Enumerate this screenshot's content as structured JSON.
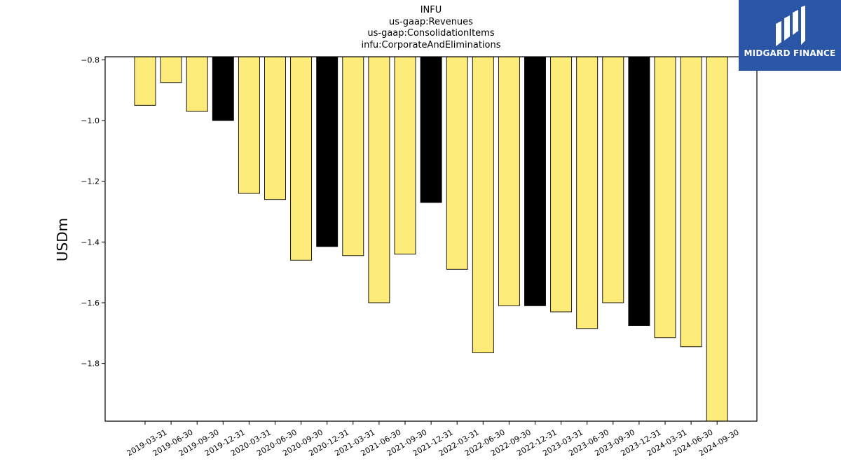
{
  "chart_data": {
    "type": "bar",
    "title_lines": [
      "INFU",
      "us-gaap:Revenues",
      "us-gaap:ConsolidationItems",
      "infu:CorporateAndEliminations"
    ],
    "ylabel": "USDm",
    "xlabel": "",
    "ylim": [
      -1.99,
      -0.79
    ],
    "yticks": [
      -0.8,
      -1.0,
      -1.2,
      -1.4,
      -1.6,
      -1.8
    ],
    "ytick_labels": [
      "−0.8",
      "−1.0",
      "−1.2",
      "−1.4",
      "−1.6",
      "−1.8"
    ],
    "categories": [
      "2019-03-31",
      "2019-06-30",
      "2019-09-30",
      "2019-12-31",
      "2020-03-31",
      "2020-06-30",
      "2020-09-30",
      "2020-12-31",
      "2021-03-31",
      "2021-06-30",
      "2021-09-30",
      "2021-12-31",
      "2022-03-31",
      "2022-06-30",
      "2022-09-30",
      "2022-12-31",
      "2023-03-31",
      "2023-06-30",
      "2023-09-30",
      "2023-12-31",
      "2024-03-31",
      "2024-06-30",
      "2024-09-30"
    ],
    "values": [
      -0.95,
      -0.875,
      -0.97,
      -1.0,
      -1.24,
      -1.26,
      -1.46,
      -1.415,
      -1.445,
      -1.6,
      -1.44,
      -1.27,
      -1.49,
      -1.765,
      -1.61,
      -1.61,
      -1.63,
      -1.685,
      -1.6,
      -1.675,
      -1.715,
      -1.745,
      -2.0
    ],
    "bar_colors": [
      "#fdec7a",
      "#fdec7a",
      "#fdec7a",
      "#000000",
      "#fdec7a",
      "#fdec7a",
      "#fdec7a",
      "#000000",
      "#fdec7a",
      "#fdec7a",
      "#fdec7a",
      "#000000",
      "#fdec7a",
      "#fdec7a",
      "#fdec7a",
      "#000000",
      "#fdec7a",
      "#fdec7a",
      "#fdec7a",
      "#000000",
      "#fdec7a",
      "#fdec7a",
      "#fdec7a"
    ],
    "grid": false,
    "legend": "none"
  },
  "logo": {
    "text": "MIDGARD FINANCE",
    "background": "#2b56a8"
  }
}
